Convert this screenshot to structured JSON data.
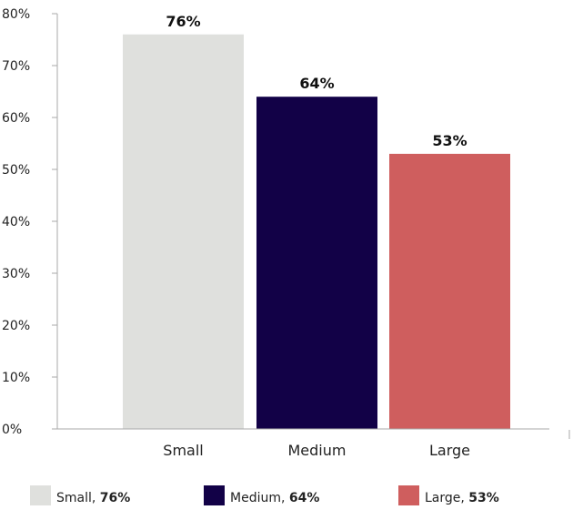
{
  "chart_data": {
    "type": "bar",
    "categories": [
      "Small",
      "Medium",
      "Large"
    ],
    "values": [
      76,
      64,
      53
    ],
    "value_labels": [
      "76%",
      "64%",
      "53%"
    ],
    "colors": [
      "#dfe0dd",
      "#120147",
      "#cf5e5e"
    ],
    "ylim": [
      0,
      80
    ],
    "yticks": [
      0,
      10,
      20,
      30,
      40,
      50,
      60,
      70,
      80
    ],
    "ytick_labels": [
      "0%",
      "10%",
      "20%",
      "30%",
      "40%",
      "50%",
      "60%",
      "70%",
      "80%"
    ],
    "grid": false,
    "legend": {
      "placement": "bottom",
      "entries": [
        {
          "name": "Small",
          "value": "76%"
        },
        {
          "name": "Medium",
          "value": "64%"
        },
        {
          "name": "Large",
          "value": "53%"
        }
      ]
    }
  }
}
